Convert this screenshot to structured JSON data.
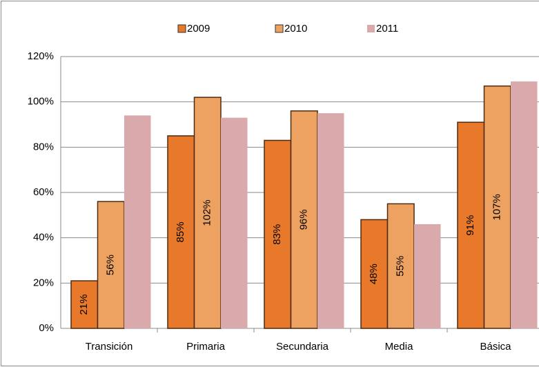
{
  "chart_data": {
    "type": "bar",
    "categories": [
      "Transición",
      "Primaria",
      "Secundaria",
      "Media",
      "Básica"
    ],
    "series": [
      {
        "name": "2009",
        "color": "#e8782a",
        "values": [
          21,
          85,
          83,
          48,
          91
        ],
        "value_labels": [
          "21%",
          "85%",
          "83%",
          "48%",
          "91%"
        ]
      },
      {
        "name": "2010",
        "color": "#eea262",
        "values": [
          56,
          102,
          96,
          55,
          107
        ],
        "value_labels": [
          "56%",
          "102%",
          "96%",
          "55%",
          "107%"
        ]
      },
      {
        "name": "2011",
        "color": "#d9a9ab",
        "values": [
          94,
          93,
          95,
          46,
          109
        ]
      }
    ],
    "ylim": [
      0,
      120
    ],
    "yticks": [
      {
        "value": 0,
        "label": "0%"
      },
      {
        "value": 20,
        "label": "20%"
      },
      {
        "value": 40,
        "label": "40%"
      },
      {
        "value": 60,
        "label": "60%"
      },
      {
        "value": 80,
        "label": "80%"
      },
      {
        "value": 100,
        "label": "100%"
      },
      {
        "value": 120,
        "label": "120%"
      }
    ],
    "grid": true,
    "legend": "top"
  }
}
